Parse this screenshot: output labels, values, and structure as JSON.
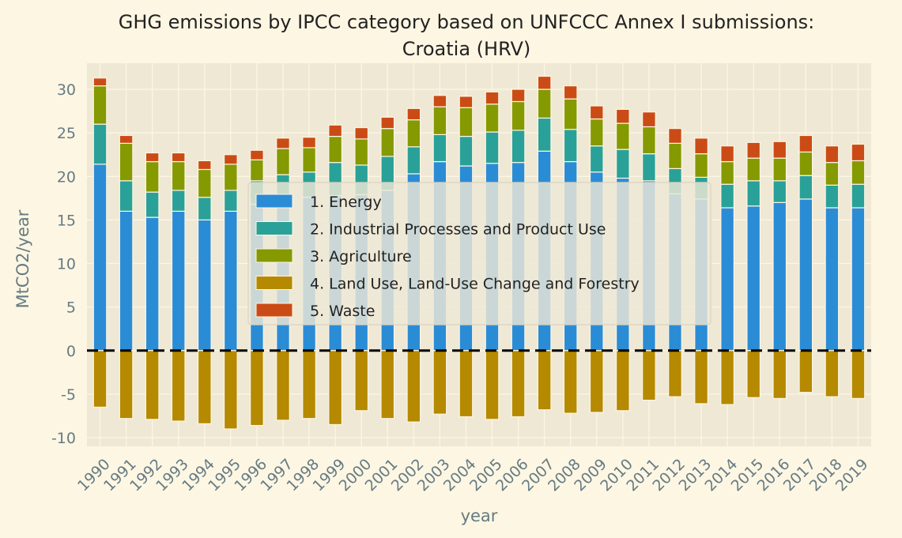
{
  "chart_data": {
    "type": "bar",
    "stacked": true,
    "title": "GHG emissions by IPCC category based on UNFCCC Annex I submissions:",
    "subtitle": "Croatia (HRV)",
    "xlabel": "year",
    "ylabel": "MtCO2/year",
    "ylim": [
      -11,
      33
    ],
    "yticks": [
      -10,
      -5,
      0,
      5,
      10,
      15,
      20,
      25,
      30
    ],
    "grid": true,
    "legend_position": "center",
    "categories": [
      "1990",
      "1991",
      "1992",
      "1993",
      "1994",
      "1995",
      "1996",
      "1997",
      "1998",
      "1999",
      "2000",
      "2001",
      "2002",
      "2003",
      "2004",
      "2005",
      "2006",
      "2007",
      "2008",
      "2009",
      "2010",
      "2011",
      "2012",
      "2013",
      "2014",
      "2015",
      "2016",
      "2017",
      "2018",
      "2019"
    ],
    "series": [
      {
        "name": "1. Energy",
        "color": "#2b8cd6",
        "values": [
          21.4,
          16.0,
          15.3,
          16.0,
          15.0,
          16.0,
          16.8,
          17.8,
          17.6,
          17.8,
          17.9,
          18.4,
          20.3,
          21.7,
          21.2,
          21.5,
          21.6,
          22.9,
          21.7,
          20.5,
          19.8,
          19.5,
          18.0,
          17.4,
          16.4,
          16.6,
          17.0,
          17.4,
          16.4,
          16.4
        ]
      },
      {
        "name": "2. Industrial Processes and Product Use",
        "color": "#2aa198",
        "values": [
          4.6,
          3.5,
          2.9,
          2.4,
          2.6,
          2.4,
          2.7,
          2.4,
          2.9,
          3.8,
          3.4,
          3.9,
          3.1,
          3.1,
          3.4,
          3.6,
          3.7,
          3.8,
          3.7,
          3.0,
          3.3,
          3.1,
          2.9,
          2.5,
          2.7,
          2.9,
          2.5,
          2.7,
          2.6,
          2.7
        ]
      },
      {
        "name": "3. Agriculture",
        "color": "#859900",
        "values": [
          4.4,
          4.3,
          3.5,
          3.3,
          3.2,
          3.0,
          2.4,
          3.0,
          2.8,
          3.0,
          3.0,
          3.2,
          3.1,
          3.2,
          3.3,
          3.2,
          3.3,
          3.3,
          3.5,
          3.1,
          3.0,
          3.1,
          2.9,
          2.7,
          2.6,
          2.6,
          2.6,
          2.7,
          2.6,
          2.7
        ]
      },
      {
        "name": "4. Land Use, Land-Use Change and Forestry",
        "color": "#b58900",
        "values": [
          -6.5,
          -7.8,
          -7.9,
          -8.1,
          -8.4,
          -9.0,
          -8.6,
          -8.0,
          -7.8,
          -8.5,
          -6.9,
          -7.8,
          -8.2,
          -7.3,
          -7.6,
          -7.9,
          -7.6,
          -6.8,
          -7.2,
          -7.1,
          -6.9,
          -5.7,
          -5.3,
          -6.1,
          -6.2,
          -5.4,
          -5.5,
          -4.8,
          -5.3,
          -5.5
        ]
      },
      {
        "name": "5. Waste",
        "color": "#cb4b16",
        "values": [
          0.9,
          0.9,
          1.0,
          1.0,
          1.0,
          1.1,
          1.1,
          1.2,
          1.2,
          1.3,
          1.3,
          1.3,
          1.3,
          1.3,
          1.3,
          1.4,
          1.4,
          1.5,
          1.5,
          1.5,
          1.6,
          1.7,
          1.7,
          1.8,
          1.8,
          1.8,
          1.9,
          1.9,
          1.9,
          1.9
        ]
      }
    ]
  }
}
